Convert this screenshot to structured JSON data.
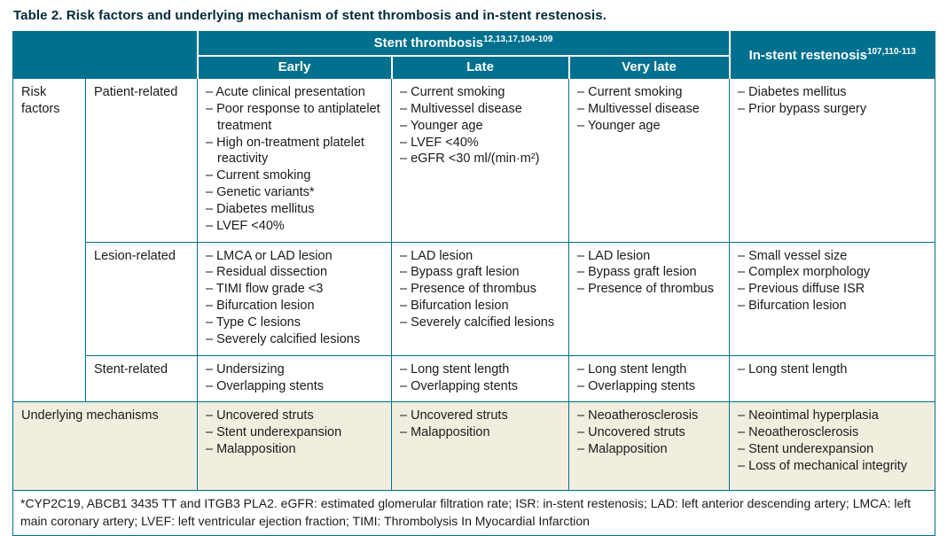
{
  "title": "Table 2. Risk factors and underlying mechanism of stent thrombosis and in-stent restenosis.",
  "colors": {
    "header_bg": "#00708f",
    "header_text": "#ffffff",
    "mechanisms_bg": "#f1eee0",
    "border": "#00708f",
    "title_text": "#00293a"
  },
  "header": {
    "stent_thrombosis": "Stent thrombosis",
    "stent_thrombosis_refs": "12,13,17,104-109",
    "in_stent_restenosis": "In-stent restenosis",
    "in_stent_restenosis_refs": "107,110-113",
    "subcolumns": [
      "Early",
      "Late",
      "Very late"
    ]
  },
  "risk_factors_label": "Risk factors",
  "rows": [
    {
      "label": "Patient-related",
      "early": [
        "Acute clinical presentation",
        "Poor response to antiplatelet treatment",
        "High on-treatment platelet reactivity",
        "Current smoking",
        "Genetic variants*",
        "Diabetes mellitus",
        "LVEF <40%"
      ],
      "late": [
        "Current smoking",
        "Multivessel disease",
        "Younger age",
        "LVEF <40%",
        "eGFR <30 ml/(min·m²)"
      ],
      "very_late": [
        "Current smoking",
        "Multivessel disease",
        "Younger age"
      ],
      "isr": [
        "Diabetes mellitus",
        "Prior bypass surgery"
      ]
    },
    {
      "label": "Lesion-related",
      "early": [
        "LMCA or LAD lesion",
        "Residual dissection",
        "TIMI flow grade <3",
        "Bifurcation lesion",
        "Type C lesions",
        "Severely calcified lesions"
      ],
      "late": [
        "LAD lesion",
        "Bypass graft lesion",
        "Presence of thrombus",
        "Bifurcation lesion",
        "Severely calcified lesions"
      ],
      "very_late": [
        "LAD lesion",
        "Bypass graft lesion",
        "Presence of thrombus"
      ],
      "isr": [
        "Small vessel size",
        "Complex morphology",
        "Previous diffuse ISR",
        "Bifurcation lesion"
      ]
    },
    {
      "label": "Stent-related",
      "early": [
        "Undersizing",
        "Overlapping stents"
      ],
      "late": [
        "Long stent length",
        "Overlapping stents"
      ],
      "very_late": [
        "Long stent length",
        "Overlapping stents"
      ],
      "isr": [
        "Long stent length"
      ]
    }
  ],
  "mechanisms": {
    "label": "Underlying mechanisms",
    "early": [
      "Uncovered struts",
      "Stent underexpansion",
      "Malapposition"
    ],
    "late": [
      "Uncovered struts",
      "Malapposition"
    ],
    "very_late": [
      "Neoatherosclerosis",
      "Uncovered struts",
      "Malapposition"
    ],
    "isr": [
      "Neointimal hyperplasia",
      "Neoatherosclerosis",
      "Stent underexpansion",
      "Loss of mechanical integrity"
    ]
  },
  "footnote": "*CYP2C19, ABCB1 3435 TT and ITGB3 PLA2. eGFR: estimated glomerular filtration rate; ISR: in-stent restenosis; LAD: left anterior descending artery; LMCA: left main coronary artery; LVEF: left ventricular ejection fraction; TIMI: Thrombolysis In Myocardial Infarction"
}
